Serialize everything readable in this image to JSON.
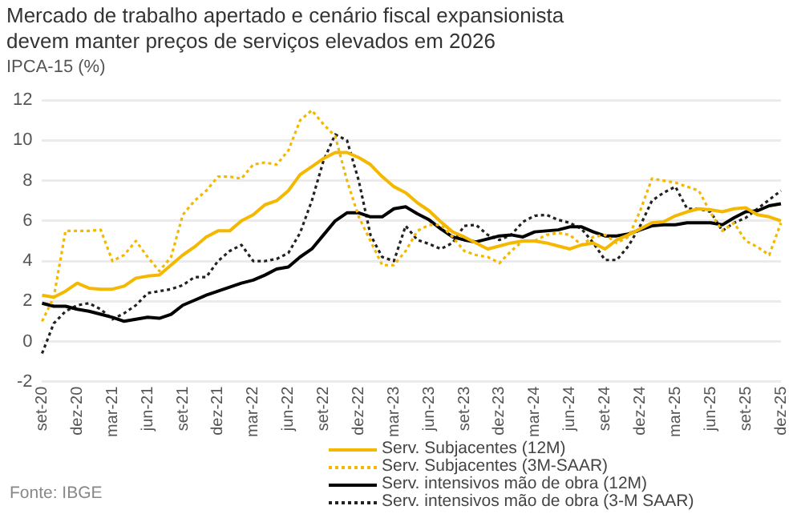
{
  "chart_data": {
    "type": "line",
    "title": "Mercado de trabalho apertado e cenário fiscal expansionista\ndevem manter preços de serviços elevados em 2026",
    "subtitle": "IPCA-15 (%)",
    "categories": [
      "set-20",
      null,
      null,
      "dez-20",
      null,
      null,
      "mar-21",
      null,
      null,
      "jun-21",
      null,
      null,
      "set-21",
      null,
      null,
      "dez-21",
      null,
      null,
      "mar-22",
      null,
      null,
      "jun-22",
      null,
      null,
      "set-22",
      null,
      null,
      "dez-22",
      null,
      null,
      "mar-23",
      null,
      null,
      "jun-23",
      null,
      null,
      "set-23",
      null,
      null,
      "dez-23",
      null,
      null,
      "mar-24",
      null,
      null,
      "jun-24",
      null,
      null,
      "set-24",
      null,
      null,
      "dez-24",
      null,
      null,
      "mar-25",
      null,
      null,
      "jun-25",
      null,
      null,
      "set-25",
      null,
      null,
      "dez-25"
    ],
    "series": [
      {
        "name": "Serv. Subjacentes (12M)",
        "color": "#f5b800",
        "line_style": "solid",
        "values": [
          2.3,
          2.2,
          2.5,
          2.9,
          2.65,
          2.6,
          2.6,
          2.75,
          3.15,
          3.25,
          3.3,
          3.8,
          4.3,
          4.7,
          5.2,
          5.5,
          5.5,
          6.0,
          6.3,
          6.8,
          7.0,
          7.5,
          8.3,
          8.7,
          9.1,
          9.4,
          9.4,
          9.15,
          8.8,
          8.2,
          7.7,
          7.4,
          6.9,
          6.5,
          5.95,
          5.45,
          5.2,
          4.9,
          4.6,
          4.75,
          4.9,
          5.0,
          5.0,
          4.9,
          4.75,
          4.6,
          4.8,
          4.9,
          4.6,
          5.05,
          5.3,
          5.6,
          5.9,
          5.95,
          6.25,
          6.45,
          6.6,
          6.55,
          6.45,
          6.6,
          6.65,
          6.3,
          6.2,
          6.0
        ]
      },
      {
        "name": "Serv. Subjacentes (3M-SAAR)",
        "color": "#f5b800",
        "line_style": "dotted",
        "values": [
          1.0,
          2.2,
          5.5,
          5.5,
          5.5,
          5.55,
          4.0,
          4.3,
          5.0,
          4.2,
          3.5,
          4.2,
          6.3,
          7.0,
          7.5,
          8.2,
          8.2,
          8.1,
          8.8,
          8.9,
          8.8,
          9.5,
          11.0,
          11.5,
          10.8,
          10.2,
          8.0,
          6.2,
          5.0,
          3.8,
          3.8,
          4.5,
          5.5,
          5.8,
          5.8,
          5.2,
          4.5,
          4.3,
          4.2,
          3.9,
          4.5,
          5.0,
          5.0,
          5.3,
          5.4,
          5.3,
          4.8,
          5.2,
          5.3,
          4.9,
          5.2,
          6.5,
          8.1,
          8.0,
          7.9,
          7.7,
          7.5,
          6.4,
          5.5,
          5.9,
          5.0,
          4.7,
          4.3,
          5.9
        ]
      },
      {
        "name": "Serv. intensivos mão de obra (12M)",
        "color": "#000000",
        "line_style": "solid",
        "values": [
          1.9,
          1.75,
          1.75,
          1.6,
          1.5,
          1.35,
          1.2,
          1.0,
          1.1,
          1.2,
          1.15,
          1.35,
          1.8,
          2.05,
          2.3,
          2.5,
          2.7,
          2.9,
          3.05,
          3.3,
          3.6,
          3.7,
          4.2,
          4.6,
          5.3,
          6.0,
          6.4,
          6.4,
          6.2,
          6.2,
          6.6,
          6.7,
          6.35,
          6.05,
          5.6,
          5.2,
          5.05,
          4.95,
          5.1,
          5.25,
          5.3,
          5.2,
          5.45,
          5.5,
          5.55,
          5.7,
          5.7,
          5.45,
          5.25,
          5.25,
          5.35,
          5.55,
          5.75,
          5.8,
          5.8,
          5.9,
          5.9,
          5.9,
          5.8,
          6.15,
          6.45,
          6.5,
          6.75,
          6.85
        ]
      },
      {
        "name": "Serv. intensivos mão de obra (3-M SAAR)",
        "color": "#222222",
        "line_style": "dotted",
        "values": [
          -0.6,
          0.9,
          1.5,
          1.8,
          1.9,
          1.6,
          1.1,
          1.4,
          1.8,
          2.4,
          2.5,
          2.6,
          2.8,
          3.2,
          3.2,
          4.0,
          4.5,
          4.8,
          4.0,
          4.0,
          4.1,
          4.4,
          5.4,
          7.0,
          9.0,
          10.3,
          10.0,
          8.0,
          5.3,
          4.2,
          4.0,
          5.75,
          5.05,
          4.85,
          4.6,
          4.9,
          5.75,
          5.8,
          5.3,
          5.05,
          5.3,
          5.95,
          6.25,
          6.3,
          6.05,
          5.9,
          5.6,
          4.9,
          4.05,
          4.05,
          4.75,
          5.75,
          7.0,
          7.4,
          7.7,
          6.6,
          6.6,
          6.45,
          5.5,
          5.9,
          6.15,
          6.6,
          7.05,
          7.5
        ]
      }
    ],
    "ylim": [
      -2,
      12
    ],
    "yticks": [
      -2,
      0,
      2,
      4,
      6,
      8,
      10,
      12
    ],
    "grid": "y",
    "legend": "bottom",
    "annotations": [
      "Fonte: IBGE"
    ]
  }
}
